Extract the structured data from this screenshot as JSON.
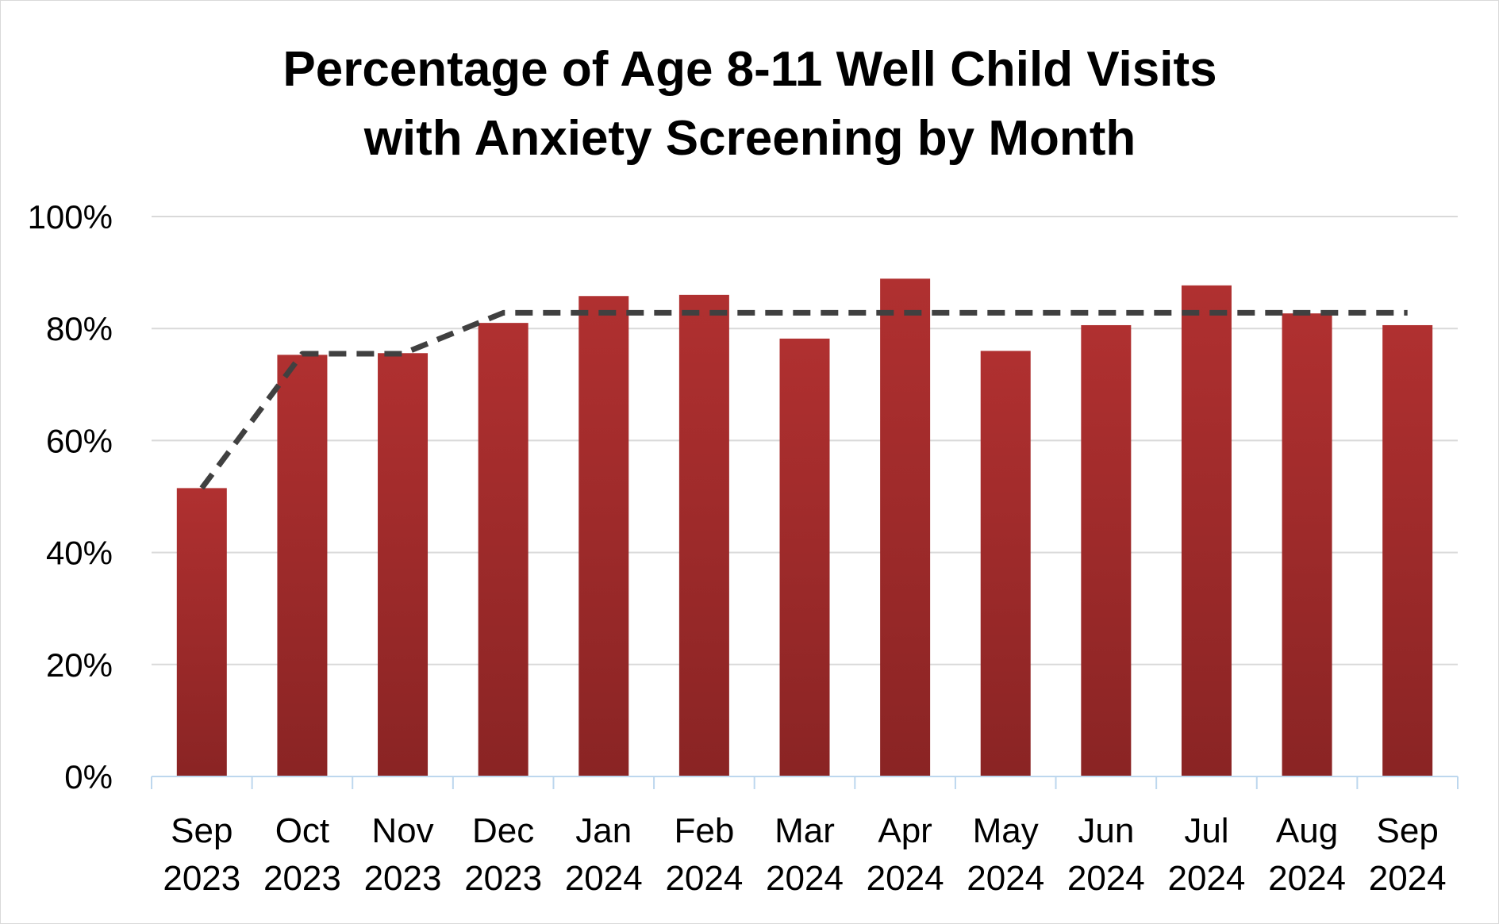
{
  "chart_data": {
    "type": "bar",
    "title": "Percentage of Age 8-11 Well Child Visits with Anxiety Screening by Month",
    "title_lines": [
      "Percentage of Age 8-11 Well Child Visits",
      "with Anxiety Screening by Month"
    ],
    "categories": [
      [
        "Sep",
        "2023"
      ],
      [
        "Oct",
        "2023"
      ],
      [
        "Nov",
        "2023"
      ],
      [
        "Dec",
        "2023"
      ],
      [
        "Jan",
        "2024"
      ],
      [
        "Feb",
        "2024"
      ],
      [
        "Mar",
        "2024"
      ],
      [
        "Apr",
        "2024"
      ],
      [
        "May",
        "2024"
      ],
      [
        "Jun",
        "2024"
      ],
      [
        "Jul",
        "2024"
      ],
      [
        "Aug",
        "2024"
      ],
      [
        "Sep",
        "2024"
      ]
    ],
    "series": [
      {
        "type": "bar",
        "values": [
          51.5,
          75.3,
          75.6,
          81.0,
          85.8,
          86.0,
          78.2,
          88.9,
          76.0,
          80.6,
          87.7,
          82.7,
          80.6
        ],
        "color": "#b03030",
        "color_dark": "#8a2424"
      },
      {
        "type": "line",
        "style": "dashed",
        "values": [
          51.5,
          75.5,
          75.5,
          82.8,
          82.8,
          82.8,
          82.8,
          82.8,
          82.8,
          82.8,
          82.8,
          82.8,
          82.8
        ],
        "color": "#404040"
      }
    ],
    "xlabel": "",
    "ylabel": "",
    "ylim": [
      0,
      100
    ],
    "yticks": [
      "0%",
      "20%",
      "40%",
      "60%",
      "80%",
      "100%"
    ],
    "ytick_values": [
      0,
      20,
      40,
      60,
      80,
      100
    ],
    "grid": true,
    "legend": "none"
  }
}
